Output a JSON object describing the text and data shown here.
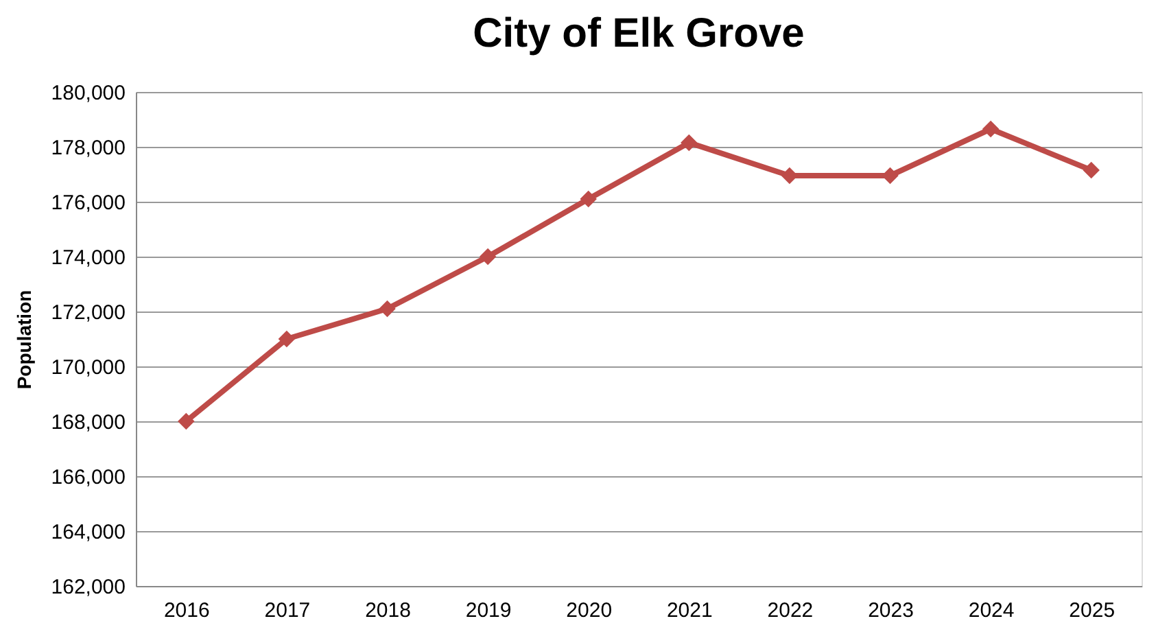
{
  "chart_data": {
    "type": "line",
    "title": "City of Elk Grove",
    "ylabel": "Population",
    "categories": [
      "2016",
      "2017",
      "2018",
      "2019",
      "2020",
      "2021",
      "2022",
      "2023",
      "2024",
      "2025"
    ],
    "series": [
      {
        "color": "#be4b48",
        "values": [
          168000,
          171000,
          172100,
          174000,
          176100,
          178150,
          176950,
          176950,
          178650,
          177150
        ]
      }
    ],
    "ylim": [
      162000,
      180000
    ],
    "yticks": [
      {
        "value": 162000,
        "label": "162,000"
      },
      {
        "value": 164000,
        "label": "164,000"
      },
      {
        "value": 166000,
        "label": "166,000"
      },
      {
        "value": 168000,
        "label": "168,000"
      },
      {
        "value": 170000,
        "label": "170,000"
      },
      {
        "value": 172000,
        "label": "172,000"
      },
      {
        "value": 174000,
        "label": "174,000"
      },
      {
        "value": 176000,
        "label": "176,000"
      },
      {
        "value": 178000,
        "label": "178,000"
      },
      {
        "value": 180000,
        "label": "180,000"
      }
    ],
    "grid": "y",
    "marker": "diamond",
    "line_style": "solid"
  }
}
